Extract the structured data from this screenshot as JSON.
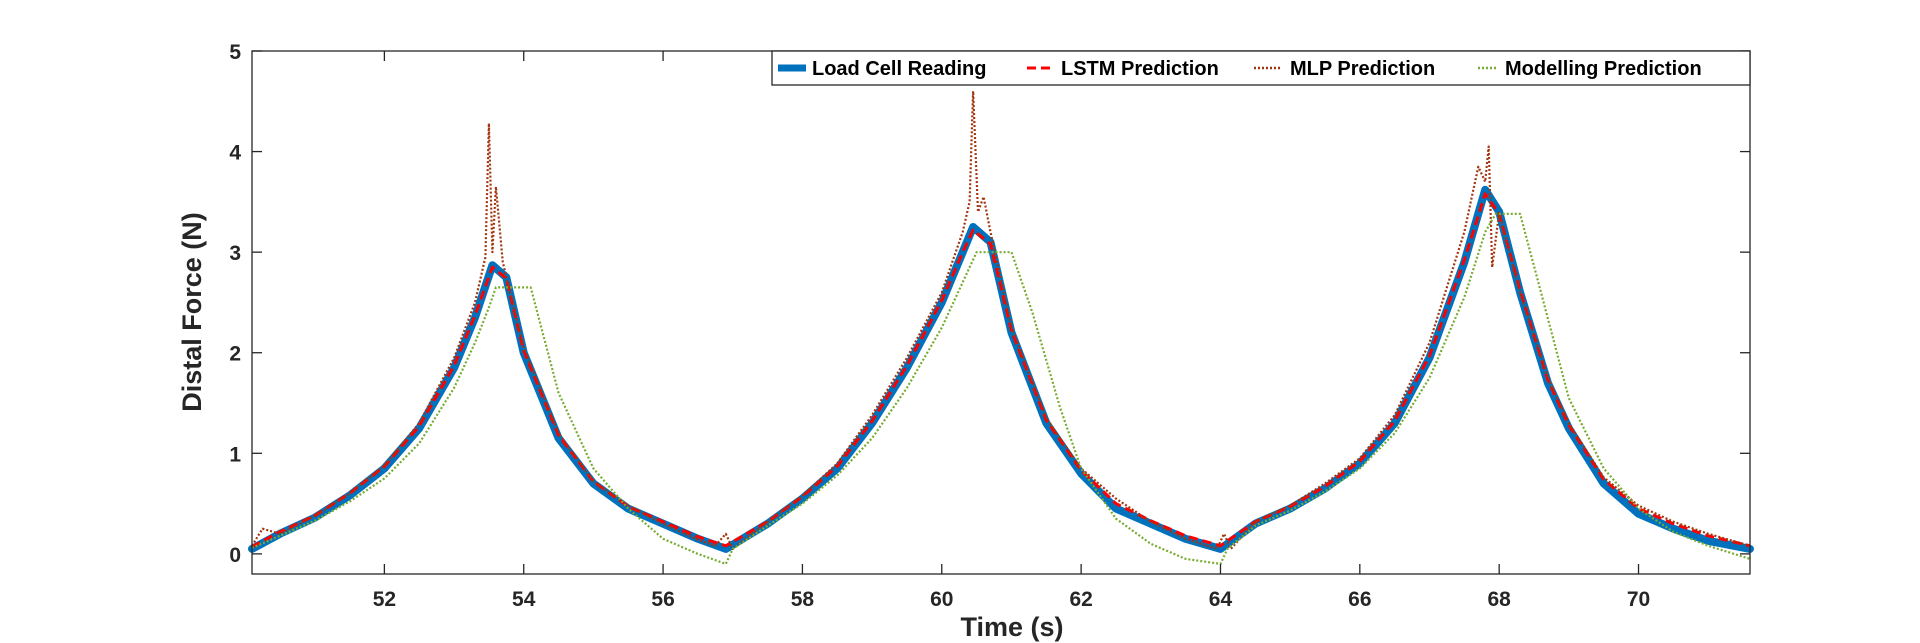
{
  "chart_data": {
    "type": "line",
    "title": "",
    "xlabel": "Time (s)",
    "ylabel": "Distal Force (N)",
    "xlim": [
      50.1,
      71.6
    ],
    "ylim": [
      -0.2,
      5
    ],
    "xticks": [
      52,
      54,
      56,
      58,
      60,
      62,
      64,
      66,
      68,
      70
    ],
    "yticks": [
      0,
      1,
      2,
      3,
      4,
      5
    ],
    "grid": false,
    "legend_position": "top-right",
    "cycles": [
      {
        "start": 50.1,
        "peak_time": 53.55,
        "end": 56.9,
        "start_value": 0.05,
        "peak_value": 2.87,
        "end_value": 0.05
      },
      {
        "start": 56.9,
        "peak_time": 60.45,
        "end": 64.0,
        "start_value": 0.05,
        "peak_value": 3.25,
        "end_value": 0.05
      },
      {
        "start": 64.0,
        "peak_time": 67.8,
        "end": 71.6,
        "start_value": 0.05,
        "peak_value": 3.62,
        "end_value": 0.05
      }
    ],
    "series": [
      {
        "name": "Load Cell Reading",
        "color": "#0072BD",
        "style": "solid-thick",
        "points": [
          [
            50.1,
            0.05
          ],
          [
            50.5,
            0.2
          ],
          [
            51.0,
            0.36
          ],
          [
            51.5,
            0.58
          ],
          [
            52.0,
            0.85
          ],
          [
            52.5,
            1.25
          ],
          [
            53.0,
            1.85
          ],
          [
            53.3,
            2.35
          ],
          [
            53.55,
            2.87
          ],
          [
            53.75,
            2.75
          ],
          [
            54.0,
            2.0
          ],
          [
            54.5,
            1.15
          ],
          [
            55.0,
            0.7
          ],
          [
            55.5,
            0.45
          ],
          [
            56.0,
            0.3
          ],
          [
            56.5,
            0.15
          ],
          [
            56.9,
            0.05
          ],
          [
            57.5,
            0.3
          ],
          [
            58.0,
            0.55
          ],
          [
            58.5,
            0.85
          ],
          [
            59.0,
            1.3
          ],
          [
            59.5,
            1.85
          ],
          [
            60.0,
            2.5
          ],
          [
            60.3,
            3.0
          ],
          [
            60.45,
            3.25
          ],
          [
            60.7,
            3.1
          ],
          [
            61.0,
            2.2
          ],
          [
            61.5,
            1.3
          ],
          [
            62.0,
            0.8
          ],
          [
            62.5,
            0.45
          ],
          [
            63.0,
            0.3
          ],
          [
            63.5,
            0.15
          ],
          [
            64.0,
            0.05
          ],
          [
            64.5,
            0.3
          ],
          [
            65.0,
            0.45
          ],
          [
            65.5,
            0.65
          ],
          [
            66.0,
            0.9
          ],
          [
            66.5,
            1.3
          ],
          [
            67.0,
            1.95
          ],
          [
            67.5,
            2.9
          ],
          [
            67.8,
            3.62
          ],
          [
            68.0,
            3.4
          ],
          [
            68.3,
            2.6
          ],
          [
            68.7,
            1.7
          ],
          [
            69.0,
            1.25
          ],
          [
            69.5,
            0.7
          ],
          [
            70.0,
            0.4
          ],
          [
            70.5,
            0.25
          ],
          [
            71.0,
            0.13
          ],
          [
            71.6,
            0.05
          ]
        ]
      },
      {
        "name": "LSTM Prediction",
        "color": "#FF0000",
        "style": "dashed",
        "points": [
          [
            50.1,
            0.07
          ],
          [
            50.5,
            0.22
          ],
          [
            51.0,
            0.38
          ],
          [
            51.5,
            0.6
          ],
          [
            52.0,
            0.87
          ],
          [
            52.5,
            1.27
          ],
          [
            53.0,
            1.87
          ],
          [
            53.3,
            2.37
          ],
          [
            53.55,
            2.85
          ],
          [
            53.75,
            2.74
          ],
          [
            54.0,
            2.02
          ],
          [
            54.5,
            1.18
          ],
          [
            55.0,
            0.72
          ],
          [
            55.5,
            0.47
          ],
          [
            56.0,
            0.32
          ],
          [
            56.5,
            0.17
          ],
          [
            56.9,
            0.08
          ],
          [
            57.5,
            0.32
          ],
          [
            58.0,
            0.57
          ],
          [
            58.5,
            0.87
          ],
          [
            59.0,
            1.32
          ],
          [
            59.5,
            1.87
          ],
          [
            60.0,
            2.52
          ],
          [
            60.3,
            3.0
          ],
          [
            60.45,
            3.22
          ],
          [
            60.7,
            3.08
          ],
          [
            61.0,
            2.22
          ],
          [
            61.5,
            1.33
          ],
          [
            62.0,
            0.83
          ],
          [
            62.5,
            0.5
          ],
          [
            63.0,
            0.33
          ],
          [
            63.5,
            0.18
          ],
          [
            64.0,
            0.08
          ],
          [
            64.5,
            0.32
          ],
          [
            65.0,
            0.47
          ],
          [
            65.5,
            0.67
          ],
          [
            66.0,
            0.92
          ],
          [
            66.5,
            1.32
          ],
          [
            67.0,
            1.97
          ],
          [
            67.5,
            2.92
          ],
          [
            67.8,
            3.58
          ],
          [
            68.0,
            3.38
          ],
          [
            68.3,
            2.62
          ],
          [
            68.7,
            1.73
          ],
          [
            69.0,
            1.28
          ],
          [
            69.5,
            0.74
          ],
          [
            70.0,
            0.45
          ],
          [
            70.5,
            0.3
          ],
          [
            71.0,
            0.18
          ],
          [
            71.6,
            0.08
          ]
        ]
      },
      {
        "name": "MLP Prediction",
        "color": "#A2350F",
        "style": "dotted",
        "points": [
          [
            50.1,
            0.08
          ],
          [
            50.25,
            0.25
          ],
          [
            50.5,
            0.2
          ],
          [
            51.0,
            0.38
          ],
          [
            51.5,
            0.6
          ],
          [
            52.0,
            0.88
          ],
          [
            52.5,
            1.3
          ],
          [
            53.0,
            1.95
          ],
          [
            53.3,
            2.5
          ],
          [
            53.45,
            2.95
          ],
          [
            53.5,
            4.28
          ],
          [
            53.55,
            3.0
          ],
          [
            53.6,
            3.65
          ],
          [
            53.7,
            2.9
          ],
          [
            54.0,
            2.05
          ],
          [
            54.5,
            1.2
          ],
          [
            55.0,
            0.72
          ],
          [
            55.5,
            0.48
          ],
          [
            56.0,
            0.3
          ],
          [
            56.5,
            0.14
          ],
          [
            56.75,
            0.08
          ],
          [
            56.9,
            0.2
          ],
          [
            57.0,
            0.05
          ],
          [
            57.5,
            0.32
          ],
          [
            58.0,
            0.58
          ],
          [
            58.5,
            0.9
          ],
          [
            59.0,
            1.38
          ],
          [
            59.5,
            1.95
          ],
          [
            60.0,
            2.6
          ],
          [
            60.3,
            3.2
          ],
          [
            60.4,
            3.5
          ],
          [
            60.45,
            4.6
          ],
          [
            60.52,
            3.4
          ],
          [
            60.6,
            3.55
          ],
          [
            60.7,
            3.2
          ],
          [
            61.0,
            2.25
          ],
          [
            61.5,
            1.35
          ],
          [
            62.0,
            0.85
          ],
          [
            62.5,
            0.55
          ],
          [
            63.0,
            0.32
          ],
          [
            63.5,
            0.15
          ],
          [
            63.95,
            0.05
          ],
          [
            64.05,
            0.2
          ],
          [
            64.15,
            0.05
          ],
          [
            64.5,
            0.32
          ],
          [
            65.0,
            0.48
          ],
          [
            65.5,
            0.7
          ],
          [
            66.0,
            0.95
          ],
          [
            66.5,
            1.38
          ],
          [
            67.0,
            2.1
          ],
          [
            67.5,
            3.2
          ],
          [
            67.7,
            3.85
          ],
          [
            67.8,
            3.7
          ],
          [
            67.85,
            4.05
          ],
          [
            67.9,
            2.85
          ],
          [
            68.0,
            3.4
          ],
          [
            68.3,
            2.6
          ],
          [
            68.7,
            1.75
          ],
          [
            69.0,
            1.3
          ],
          [
            69.5,
            0.76
          ],
          [
            70.0,
            0.48
          ],
          [
            70.5,
            0.32
          ],
          [
            71.0,
            0.2
          ],
          [
            71.6,
            0.08
          ]
        ]
      },
      {
        "name": "Modelling Prediction",
        "color": "#77AC30",
        "style": "dotted",
        "points": [
          [
            50.1,
            0.06
          ],
          [
            50.5,
            0.18
          ],
          [
            51.0,
            0.33
          ],
          [
            51.5,
            0.52
          ],
          [
            52.0,
            0.75
          ],
          [
            52.5,
            1.1
          ],
          [
            53.0,
            1.65
          ],
          [
            53.3,
            2.1
          ],
          [
            53.5,
            2.45
          ],
          [
            53.6,
            2.65
          ],
          [
            54.1,
            2.65
          ],
          [
            54.5,
            1.6
          ],
          [
            55.0,
            0.85
          ],
          [
            55.5,
            0.45
          ],
          [
            56.0,
            0.15
          ],
          [
            56.5,
            0.0
          ],
          [
            56.9,
            -0.1
          ],
          [
            57.0,
            0.05
          ],
          [
            57.5,
            0.28
          ],
          [
            58.0,
            0.5
          ],
          [
            58.5,
            0.78
          ],
          [
            59.0,
            1.15
          ],
          [
            59.5,
            1.65
          ],
          [
            60.0,
            2.25
          ],
          [
            60.3,
            2.7
          ],
          [
            60.5,
            3.0
          ],
          [
            61.0,
            3.0
          ],
          [
            61.3,
            2.4
          ],
          [
            61.7,
            1.45
          ],
          [
            62.0,
            0.85
          ],
          [
            62.5,
            0.35
          ],
          [
            63.0,
            0.1
          ],
          [
            63.5,
            -0.05
          ],
          [
            64.0,
            -0.1
          ],
          [
            64.1,
            0.05
          ],
          [
            64.5,
            0.28
          ],
          [
            65.0,
            0.43
          ],
          [
            65.5,
            0.62
          ],
          [
            66.0,
            0.85
          ],
          [
            66.5,
            1.2
          ],
          [
            67.0,
            1.75
          ],
          [
            67.5,
            2.55
          ],
          [
            67.8,
            3.2
          ],
          [
            67.95,
            3.38
          ],
          [
            68.3,
            3.38
          ],
          [
            68.6,
            2.6
          ],
          [
            69.0,
            1.55
          ],
          [
            69.5,
            0.85
          ],
          [
            70.0,
            0.45
          ],
          [
            70.5,
            0.22
          ],
          [
            71.0,
            0.08
          ],
          [
            71.6,
            -0.05
          ]
        ]
      }
    ]
  }
}
